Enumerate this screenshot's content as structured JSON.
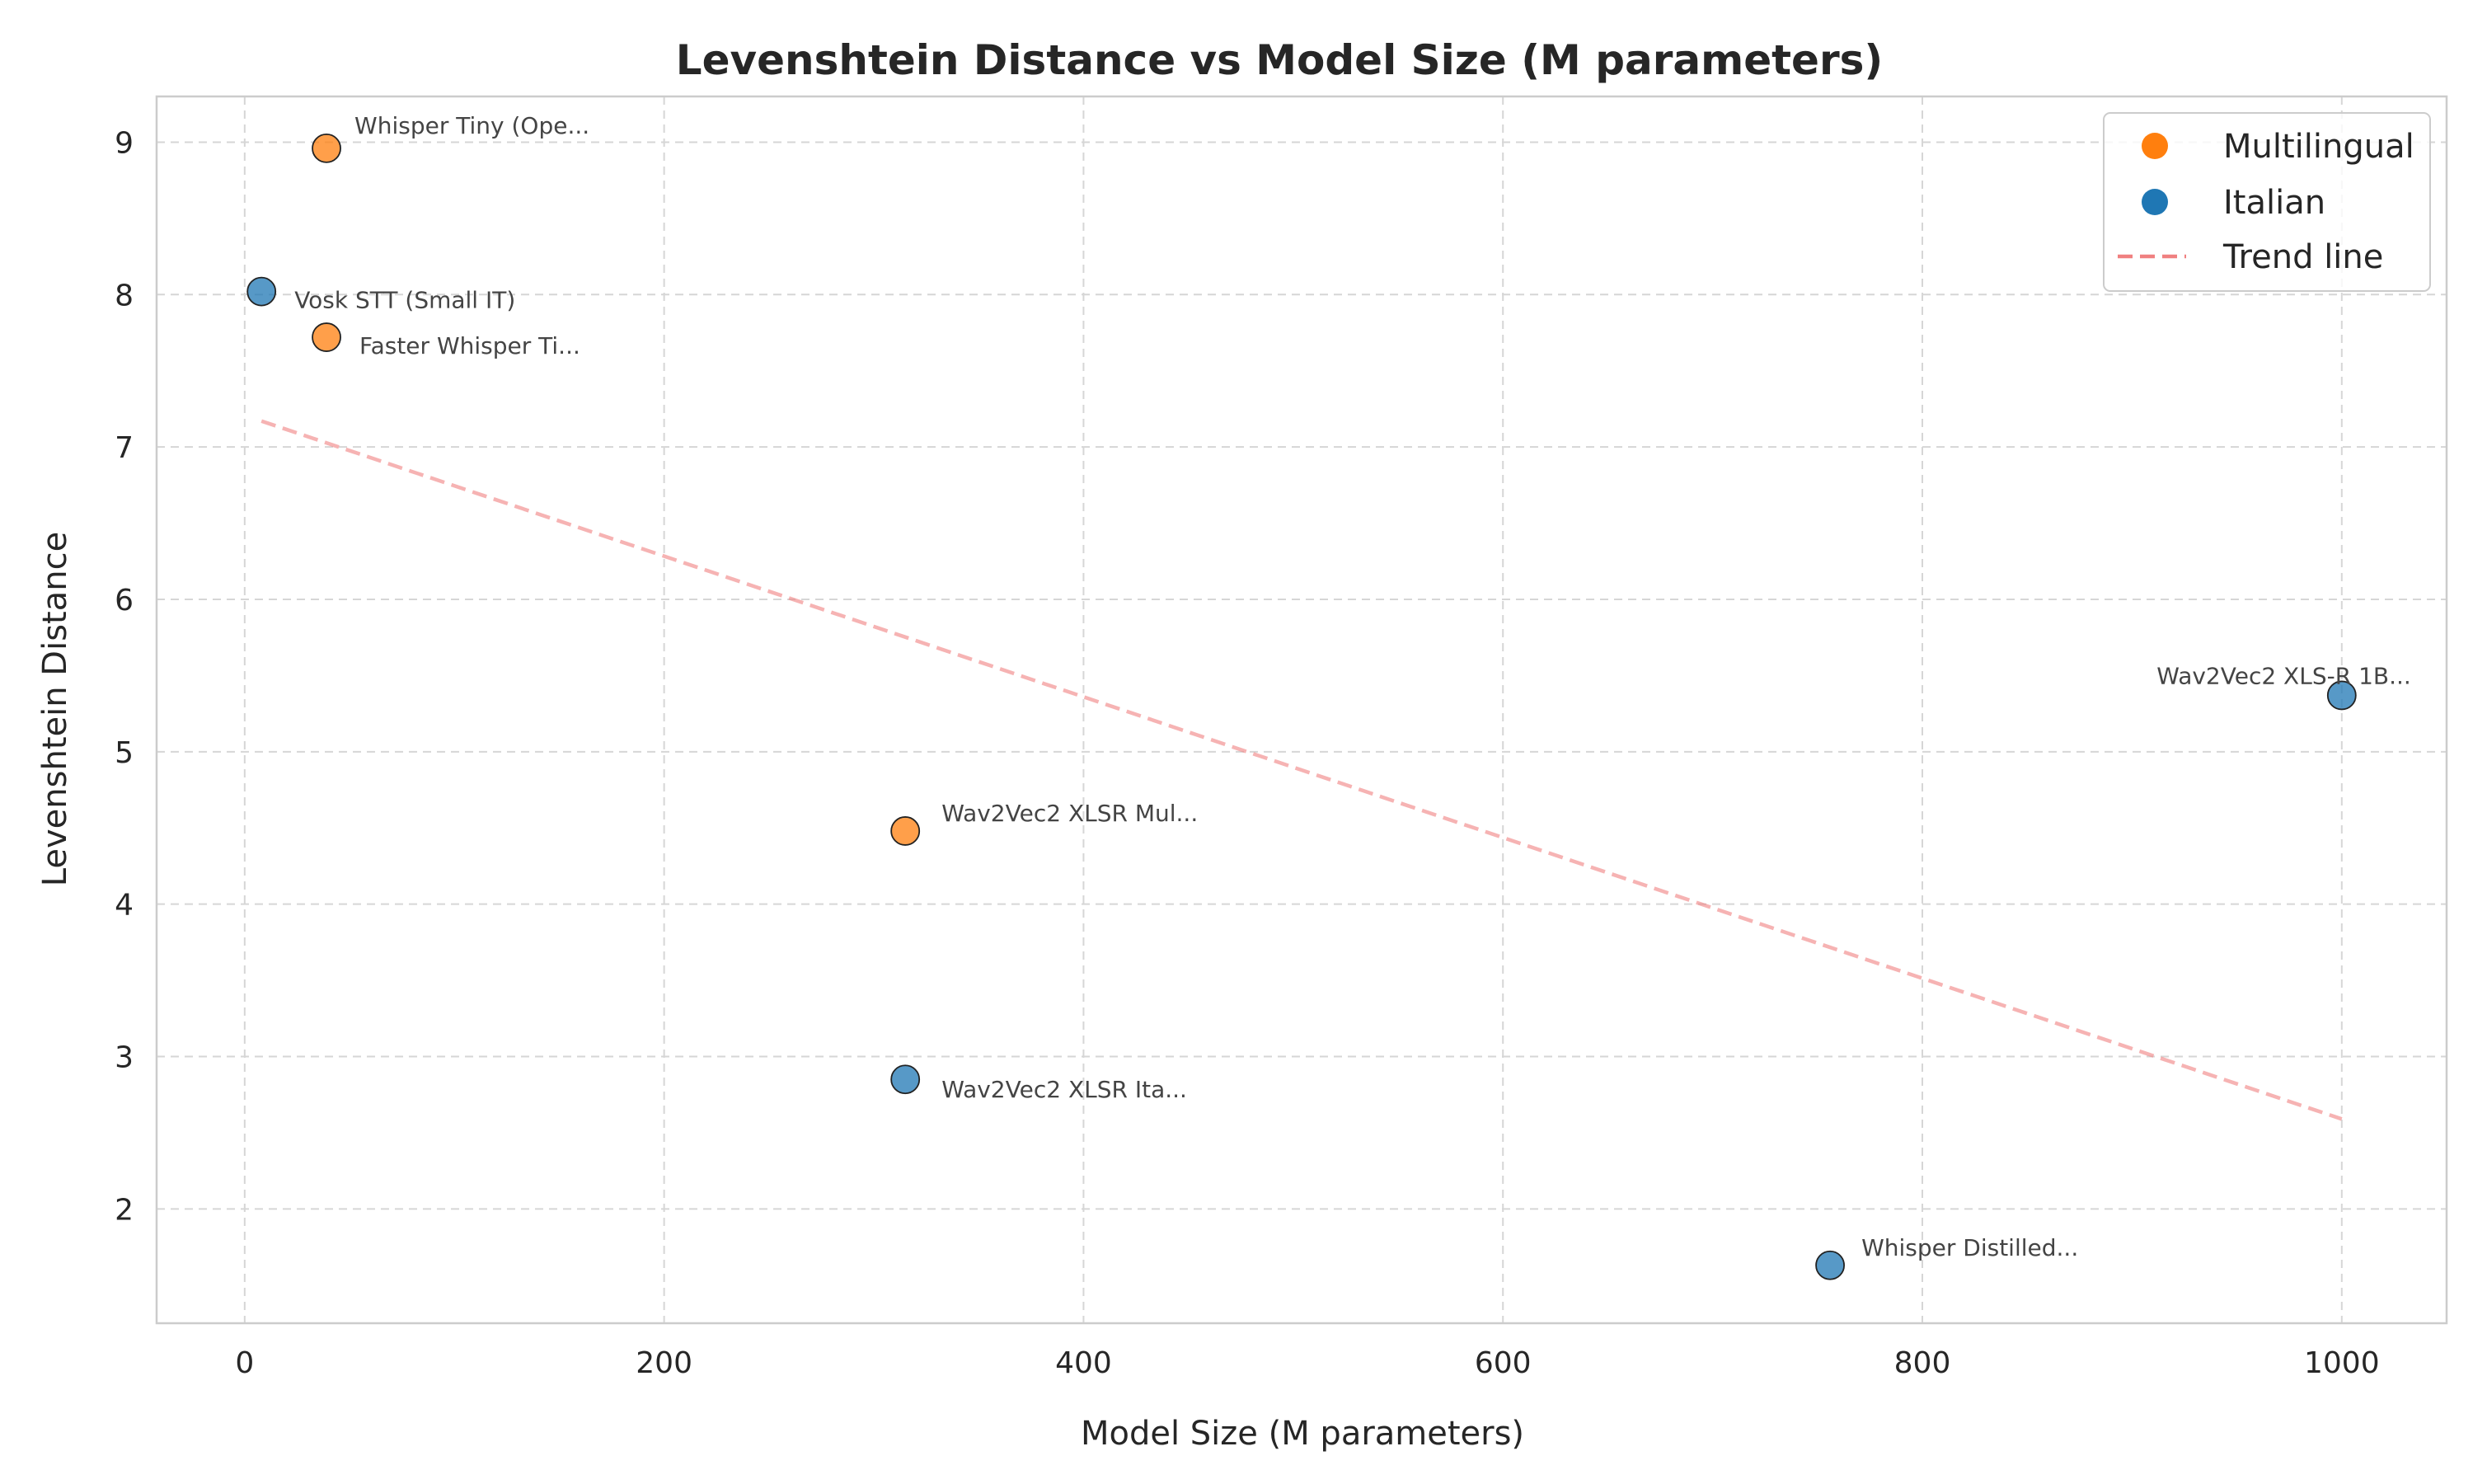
{
  "chart_data": {
    "type": "scatter",
    "title": "Levenshtein Distance vs Model Size (M parameters)",
    "xlabel": "Model Size (M parameters)",
    "ylabel": "Levenshtein Distance",
    "xlim": [
      -42,
      1050
    ],
    "ylim": [
      1.25,
      9.3
    ],
    "xticks": [
      0,
      200,
      400,
      600,
      800,
      1000
    ],
    "yticks": [
      2,
      3,
      4,
      5,
      6,
      7,
      8,
      9
    ],
    "xtick_labels": [
      "0",
      "200",
      "400",
      "600",
      "800",
      "1000"
    ],
    "ytick_labels": [
      "2",
      "3",
      "4",
      "5",
      "6",
      "7",
      "8",
      "9"
    ],
    "grid": true,
    "legend_position": "top-right",
    "series": [
      {
        "name": "Multilingual",
        "color": "#ff7f0e",
        "points": [
          {
            "label": "Whisper Tiny (Ope...",
            "x": 39,
            "y": 8.96
          },
          {
            "label": "Faster Whisper Ti...",
            "x": 39,
            "y": 7.72
          },
          {
            "label": "Wav2Vec2 XLSR Mul...",
            "x": 315,
            "y": 4.48
          }
        ]
      },
      {
        "name": "Italian",
        "color": "#1f77b4",
        "points": [
          {
            "label": "Vosk STT (Small IT)",
            "x": 8,
            "y": 8.02
          },
          {
            "label": "Wav2Vec2 XLSR Ita...",
            "x": 315,
            "y": 2.85
          },
          {
            "label": "Whisper Distilled...",
            "x": 756,
            "y": 1.63
          },
          {
            "label": "Wav2Vec2 XLS-R 1B...",
            "x": 1000,
            "y": 5.37
          }
        ]
      }
    ],
    "trend_line": {
      "name": "Trend line",
      "color": "#f08080",
      "x": [
        8,
        1000
      ],
      "y": [
        7.17,
        2.59
      ]
    }
  }
}
